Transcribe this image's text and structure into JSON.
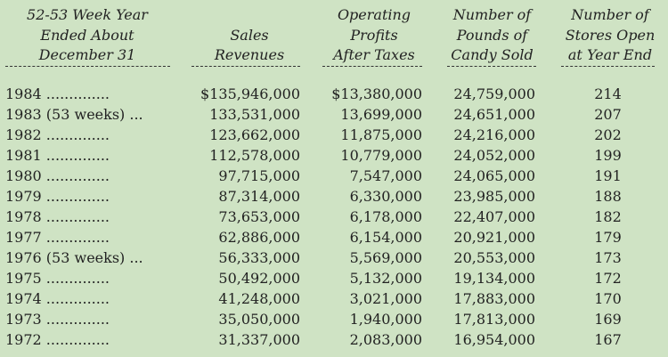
{
  "headers": {
    "year": [
      "52-53 Week Year",
      "Ended About",
      "December 31"
    ],
    "sales": [
      "Sales",
      "Revenues"
    ],
    "profits": [
      "Operating",
      "Profits",
      "After Taxes"
    ],
    "pounds": [
      "Number of",
      "Pounds of",
      "Candy Sold"
    ],
    "stores": [
      "Number of",
      "Stores Open",
      "at Year End"
    ]
  },
  "rows": [
    {
      "year": "1984 ..............",
      "sales": "$135,946,000",
      "profits": "$13,380,000",
      "pounds": "24,759,000",
      "stores": "214"
    },
    {
      "year": "1983 (53 weeks) ...",
      "sales": "133,531,000",
      "profits": "13,699,000",
      "pounds": "24,651,000",
      "stores": "207"
    },
    {
      "year": "1982 ..............",
      "sales": "123,662,000",
      "profits": "11,875,000",
      "pounds": "24,216,000",
      "stores": "202"
    },
    {
      "year": "1981 ..............",
      "sales": "112,578,000",
      "profits": "10,779,000",
      "pounds": "24,052,000",
      "stores": "199"
    },
    {
      "year": "1980 ..............",
      "sales": "97,715,000",
      "profits": "7,547,000",
      "pounds": "24,065,000",
      "stores": "191"
    },
    {
      "year": "1979 ..............",
      "sales": "87,314,000",
      "profits": "6,330,000",
      "pounds": "23,985,000",
      "stores": "188"
    },
    {
      "year": "1978 ..............",
      "sales": "73,653,000",
      "profits": "6,178,000",
      "pounds": "22,407,000",
      "stores": "182"
    },
    {
      "year": "1977 ..............",
      "sales": "62,886,000",
      "profits": "6,154,000",
      "pounds": "20,921,000",
      "stores": "179"
    },
    {
      "year": "1976 (53 weeks) ...",
      "sales": "56,333,000",
      "profits": "5,569,000",
      "pounds": "20,553,000",
      "stores": "173"
    },
    {
      "year": "1975 ..............",
      "sales": "50,492,000",
      "profits": "5,132,000",
      "pounds": "19,134,000",
      "stores": "172"
    },
    {
      "year": "1974 ..............",
      "sales": "41,248,000",
      "profits": "3,021,000",
      "pounds": "17,883,000",
      "stores": "170"
    },
    {
      "year": "1973 ..............",
      "sales": "35,050,000",
      "profits": "1,940,000",
      "pounds": "17,813,000",
      "stores": "169"
    },
    {
      "year": "1972 ..............",
      "sales": "31,337,000",
      "profits": "2,083,000",
      "pounds": "16,954,000",
      "stores": "167"
    }
  ]
}
